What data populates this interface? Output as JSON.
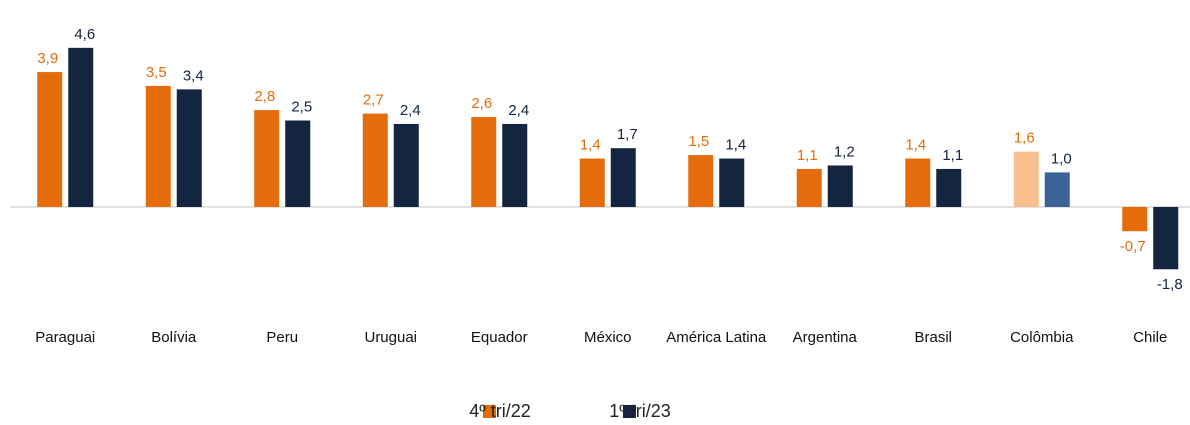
{
  "chart_data": {
    "type": "bar",
    "categories": [
      "Paraguai",
      "Bolívia",
      "Peru",
      "Uruguai",
      "Equador",
      "México",
      "América Latina",
      "Argentina",
      "Brasil",
      "Colômbia",
      "Chile"
    ],
    "series": [
      {
        "name": "4º tri/22",
        "color": "#E46C0A",
        "colors": [
          "#E46C0A",
          "#E46C0A",
          "#E46C0A",
          "#E46C0A",
          "#E46C0A",
          "#E46C0A",
          "#E46C0A",
          "#E46C0A",
          "#E46C0A",
          "#F9BF8F",
          "#E46C0A"
        ],
        "values": [
          3.9,
          3.5,
          2.8,
          2.7,
          2.6,
          1.4,
          1.5,
          1.1,
          1.4,
          1.6,
          -0.7
        ],
        "value_labels": [
          "3,9",
          "3,5",
          "2,8",
          "2,7",
          "2,6",
          "1,4",
          "1,5",
          "1,1",
          "1,4",
          "1,6",
          "-0,7"
        ]
      },
      {
        "name": "1º tri/23",
        "color": "#14253F",
        "colors": [
          "#14253F",
          "#14253F",
          "#14253F",
          "#14253F",
          "#14253F",
          "#14253F",
          "#14253F",
          "#14253F",
          "#14253F",
          "#3A6396",
          "#14253F"
        ],
        "values": [
          4.6,
          3.4,
          2.5,
          2.4,
          2.4,
          1.7,
          1.4,
          1.2,
          1.1,
          1.0,
          -1.8
        ],
        "value_labels": [
          "4,6",
          "3,4",
          "2,5",
          "2,4",
          "2,4",
          "1,7",
          "1,4",
          "1,2",
          "1,1",
          "1,0",
          "-1,8"
        ]
      }
    ],
    "ylim": [
      -2.5,
      5
    ],
    "legend": "bottom"
  }
}
